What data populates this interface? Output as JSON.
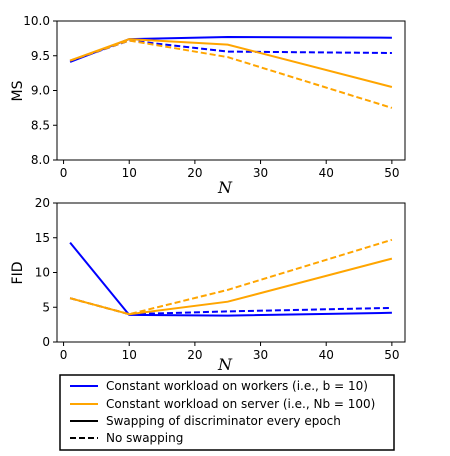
{
  "chart_data": [
    {
      "type": "line",
      "ylabel": "MS",
      "xlabel": "N",
      "xlim": [
        -1,
        52
      ],
      "ylim": [
        8.0,
        10.0
      ],
      "xticks": [
        0,
        10,
        20,
        30,
        40,
        50
      ],
      "yticks": [
        8.0,
        8.5,
        9.0,
        9.5,
        10.0
      ],
      "ytick_labels": [
        "8.0",
        "8.5",
        "9.0",
        "9.5",
        "10.0"
      ],
      "grid": false,
      "series": [
        {
          "style_key": "workers_swap",
          "x": [
            1,
            10,
            25,
            50
          ],
          "y": [
            9.41,
            9.74,
            9.77,
            9.76
          ]
        },
        {
          "style_key": "workers_noswap",
          "x": [
            1,
            10,
            25,
            50
          ],
          "y": [
            9.42,
            9.72,
            9.56,
            9.54
          ]
        },
        {
          "style_key": "server_swap",
          "x": [
            1,
            10,
            25,
            50
          ],
          "y": [
            9.43,
            9.74,
            9.66,
            9.05
          ]
        },
        {
          "style_key": "server_noswap",
          "x": [
            1,
            10,
            25,
            50
          ],
          "y": [
            9.43,
            9.72,
            9.48,
            8.75
          ]
        }
      ]
    },
    {
      "type": "line",
      "ylabel": "FID",
      "xlabel": "N",
      "xlim": [
        -1,
        52
      ],
      "ylim": [
        0,
        20
      ],
      "xticks": [
        0,
        10,
        20,
        30,
        40,
        50
      ],
      "yticks": [
        0,
        5,
        10,
        15,
        20
      ],
      "ytick_labels": [
        "0",
        "5",
        "10",
        "15",
        "20"
      ],
      "grid": false,
      "series": [
        {
          "style_key": "workers_swap",
          "x": [
            1,
            10,
            25,
            50
          ],
          "y": [
            14.3,
            3.9,
            3.8,
            4.2
          ]
        },
        {
          "style_key": "workers_noswap",
          "x": [
            1,
            10,
            25,
            50
          ],
          "y": [
            6.3,
            4.0,
            4.4,
            4.9
          ]
        },
        {
          "style_key": "server_swap",
          "x": [
            1,
            10,
            25,
            50
          ],
          "y": [
            6.3,
            4.0,
            5.8,
            12.0
          ]
        },
        {
          "style_key": "server_noswap",
          "x": [
            1,
            10,
            25,
            50
          ],
          "y": [
            6.3,
            4.0,
            7.5,
            14.7
          ]
        }
      ]
    }
  ],
  "styles": {
    "workers_swap": {
      "color": "#0000ff",
      "dash": "solid"
    },
    "workers_noswap": {
      "color": "#0000ff",
      "dash": "dashed"
    },
    "server_swap": {
      "color": "#ffa500",
      "dash": "solid"
    },
    "server_noswap": {
      "color": "#ffa500",
      "dash": "dashed"
    }
  },
  "legend": {
    "placement": "bottom",
    "entries": [
      {
        "label": "Constant workload on workers (i.e., b = 10)",
        "color": "#0000ff",
        "dash": "solid"
      },
      {
        "label": "Constant workload on server (i.e., Nb = 100)",
        "color": "#ffa500",
        "dash": "solid"
      },
      {
        "label": "Swapping of discriminator every epoch",
        "color": "#000000",
        "dash": "solid"
      },
      {
        "label": "No swapping",
        "color": "#000000",
        "dash": "dashed"
      }
    ]
  }
}
